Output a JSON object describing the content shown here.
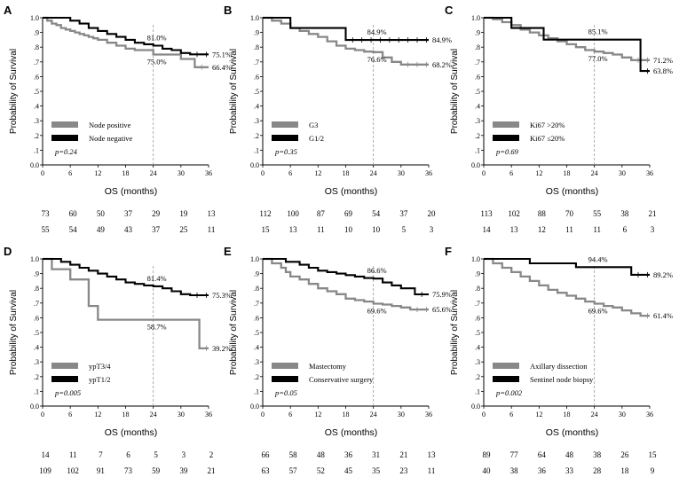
{
  "figure": {
    "y_axis_label": "Probability of Survival",
    "x_axis_label": "OS (months)",
    "y_tick_labels": [
      "0.0",
      ".1",
      ".2",
      ".3",
      ".4",
      ".5",
      ".6",
      ".7",
      ".8",
      ".9",
      "1.0"
    ],
    "x_tick_labels": [
      "0",
      "6",
      "12",
      "18",
      "24",
      "30",
      "36"
    ],
    "colors": {
      "gray": "#888888",
      "black": "#000000",
      "ref_line": "#999999"
    }
  },
  "chart_data": [
    {
      "type": "line",
      "panel": "A",
      "title": "",
      "xlabel": "OS (months)",
      "ylabel": "Probability of Survival",
      "xlim": [
        0,
        36
      ],
      "ylim": [
        0,
        1
      ],
      "reference_x": 24,
      "p_value": "p=0.24",
      "series": [
        {
          "name": "Node positive",
          "color": "gray",
          "x": [
            0,
            1,
            2,
            3,
            4,
            5,
            6,
            7,
            8,
            9,
            10,
            11,
            12,
            14,
            16,
            18,
            20,
            24,
            28,
            30,
            32,
            33,
            36
          ],
          "y": [
            1,
            0.98,
            0.96,
            0.95,
            0.93,
            0.92,
            0.91,
            0.9,
            0.89,
            0.88,
            0.87,
            0.86,
            0.85,
            0.83,
            0.81,
            0.79,
            0.78,
            0.75,
            0.75,
            0.72,
            0.72,
            0.664,
            0.664
          ],
          "label_end": "66.4%",
          "label_24": "75.0%"
        },
        {
          "name": "Node negative",
          "color": "black",
          "x": [
            0,
            5,
            6,
            8,
            10,
            12,
            14,
            16,
            18,
            20,
            22,
            24,
            26,
            28,
            30,
            32,
            36
          ],
          "y": [
            1,
            1,
            0.98,
            0.96,
            0.93,
            0.91,
            0.89,
            0.87,
            0.85,
            0.83,
            0.82,
            0.81,
            0.79,
            0.78,
            0.76,
            0.751,
            0.751
          ],
          "label_end": "75.1%",
          "label_24": "81.0%"
        }
      ],
      "at_risk": [
        {
          "series": "Node positive",
          "values": [
            "73",
            "60",
            "50",
            "37",
            "29",
            "19",
            "13"
          ]
        },
        {
          "series": "Node negative",
          "values": [
            "55",
            "54",
            "49",
            "43",
            "37",
            "25",
            "11"
          ]
        }
      ]
    },
    {
      "type": "line",
      "panel": "B",
      "title": "",
      "xlabel": "OS (months)",
      "ylabel": "Probability of Survival",
      "xlim": [
        0,
        36
      ],
      "ylim": [
        0,
        1
      ],
      "reference_x": 24,
      "p_value": "p=0.35",
      "series": [
        {
          "name": "G3",
          "color": "gray",
          "x": [
            0,
            2,
            4,
            6,
            8,
            10,
            12,
            14,
            16,
            18,
            20,
            22,
            24,
            26,
            28,
            30,
            36
          ],
          "y": [
            1,
            0.98,
            0.96,
            0.93,
            0.91,
            0.89,
            0.87,
            0.84,
            0.81,
            0.79,
            0.78,
            0.77,
            0.766,
            0.73,
            0.7,
            0.682,
            0.682
          ],
          "label_end": "68.2%",
          "label_24": "76.6%"
        },
        {
          "name": "G1/2",
          "color": "black",
          "x": [
            0,
            3,
            6,
            17,
            18,
            36
          ],
          "y": [
            1,
            1,
            0.93,
            0.93,
            0.849,
            0.849
          ],
          "label_end": "84.9%",
          "label_24": "84.9%"
        }
      ],
      "at_risk": [
        {
          "series": "G3",
          "values": [
            "112",
            "100",
            "87",
            "69",
            "54",
            "37",
            "20"
          ]
        },
        {
          "series": "G1/2",
          "values": [
            "15",
            "13",
            "11",
            "10",
            "10",
            "5",
            "3"
          ]
        }
      ]
    },
    {
      "type": "line",
      "panel": "C",
      "title": "",
      "xlabel": "OS (months)",
      "ylabel": "Probability of Survival",
      "xlim": [
        0,
        36
      ],
      "ylim": [
        0,
        1
      ],
      "reference_x": 24,
      "p_value": "p=0.69",
      "series": [
        {
          "name": "Ki67 >20%",
          "color": "gray",
          "x": [
            0,
            2,
            4,
            6,
            8,
            10,
            12,
            14,
            16,
            18,
            20,
            22,
            24,
            26,
            28,
            30,
            32,
            36
          ],
          "y": [
            1,
            0.99,
            0.97,
            0.95,
            0.92,
            0.9,
            0.88,
            0.86,
            0.84,
            0.82,
            0.8,
            0.78,
            0.77,
            0.76,
            0.75,
            0.73,
            0.712,
            0.712
          ],
          "label_end": "71.2%",
          "label_24": "77.0%"
        },
        {
          "name": "Ki67 ≤20%",
          "color": "black",
          "x": [
            0,
            5,
            6,
            12,
            13,
            33,
            34,
            36
          ],
          "y": [
            1,
            1,
            0.93,
            0.93,
            0.851,
            0.851,
            0.638,
            0.638
          ],
          "label_end": "63.8%",
          "label_24": "85.1%"
        }
      ],
      "at_risk": [
        {
          "series": "Ki67 >20%",
          "values": [
            "113",
            "102",
            "88",
            "70",
            "55",
            "38",
            "21"
          ]
        },
        {
          "series": "Ki67 ≤20%",
          "values": [
            "14",
            "13",
            "12",
            "11",
            "11",
            "6",
            "3"
          ]
        }
      ]
    },
    {
      "type": "line",
      "panel": "D",
      "title": "",
      "xlabel": "OS (months)",
      "ylabel": "Probability of Survival",
      "xlim": [
        0,
        36
      ],
      "ylim": [
        0,
        1
      ],
      "reference_x": 24,
      "p_value": "p=0.005",
      "series": [
        {
          "name": "ypT3/4",
          "color": "gray",
          "x": [
            0,
            2,
            5,
            6,
            9,
            10,
            12,
            33,
            34,
            36
          ],
          "y": [
            1,
            0.93,
            0.93,
            0.86,
            0.86,
            0.68,
            0.587,
            0.587,
            0.392,
            0.392
          ],
          "label_end": "39.2%",
          "label_24": "58.7%"
        },
        {
          "name": "ypT1/2",
          "color": "black",
          "x": [
            0,
            3,
            4,
            6,
            8,
            10,
            12,
            14,
            16,
            18,
            20,
            22,
            24,
            26,
            28,
            30,
            32,
            36
          ],
          "y": [
            1,
            1,
            0.98,
            0.96,
            0.94,
            0.92,
            0.9,
            0.88,
            0.86,
            0.84,
            0.83,
            0.82,
            0.814,
            0.8,
            0.78,
            0.76,
            0.753,
            0.753
          ],
          "label_end": "75.3%",
          "label_24": "81.4%"
        }
      ],
      "at_risk": [
        {
          "series": "ypT3/4",
          "values": [
            "14",
            "11",
            "7",
            "6",
            "5",
            "3",
            "2"
          ]
        },
        {
          "series": "ypT1/2",
          "values": [
            "109",
            "102",
            "91",
            "73",
            "59",
            "39",
            "21"
          ]
        }
      ]
    },
    {
      "type": "line",
      "panel": "E",
      "title": "",
      "xlabel": "OS (months)",
      "ylabel": "Probability of Survival",
      "xlim": [
        0,
        36
      ],
      "ylim": [
        0,
        1
      ],
      "reference_x": 24,
      "p_value": "p=0.05",
      "series": [
        {
          "name": "Mastectomy",
          "color": "gray",
          "x": [
            0,
            2,
            4,
            5,
            6,
            8,
            10,
            12,
            14,
            16,
            18,
            20,
            22,
            24,
            26,
            28,
            30,
            32,
            36
          ],
          "y": [
            1,
            0.97,
            0.94,
            0.91,
            0.88,
            0.86,
            0.83,
            0.8,
            0.78,
            0.76,
            0.73,
            0.72,
            0.71,
            0.696,
            0.69,
            0.68,
            0.67,
            0.656,
            0.656
          ],
          "label_end": "65.6%",
          "label_24": "69.6%"
        },
        {
          "name": "Conservative surgery",
          "color": "black",
          "x": [
            0,
            4,
            5,
            8,
            10,
            12,
            14,
            16,
            18,
            20,
            22,
            24,
            26,
            28,
            30,
            33,
            36
          ],
          "y": [
            1,
            1,
            0.98,
            0.96,
            0.94,
            0.92,
            0.91,
            0.9,
            0.89,
            0.88,
            0.87,
            0.866,
            0.84,
            0.82,
            0.8,
            0.759,
            0.759
          ],
          "label_end": "75.9%",
          "label_24": "86.6%"
        }
      ],
      "at_risk": [
        {
          "series": "Mastectomy",
          "values": [
            "66",
            "58",
            "48",
            "36",
            "31",
            "21",
            "13"
          ]
        },
        {
          "series": "Conservative surgery",
          "values": [
            "63",
            "57",
            "52",
            "45",
            "35",
            "23",
            "11"
          ]
        }
      ]
    },
    {
      "type": "line",
      "panel": "F",
      "title": "",
      "xlabel": "OS (months)",
      "ylabel": "Probability of Survival",
      "xlim": [
        0,
        36
      ],
      "ylim": [
        0,
        1
      ],
      "reference_x": 24,
      "p_value": "p=0.002",
      "series": [
        {
          "name": "Axillary dissection",
          "color": "gray",
          "x": [
            0,
            2,
            4,
            6,
            8,
            10,
            12,
            14,
            16,
            18,
            20,
            22,
            24,
            26,
            28,
            30,
            32,
            34,
            36
          ],
          "y": [
            1,
            0.97,
            0.94,
            0.91,
            0.88,
            0.85,
            0.82,
            0.79,
            0.77,
            0.75,
            0.73,
            0.71,
            0.696,
            0.68,
            0.67,
            0.65,
            0.63,
            0.614,
            0.614
          ],
          "label_end": "61.4%",
          "label_24": "69.6%"
        },
        {
          "name": "Sentinel node biopsy",
          "color": "black",
          "x": [
            0,
            9,
            10,
            19,
            20,
            31,
            32,
            36
          ],
          "y": [
            1,
            1,
            0.97,
            0.97,
            0.944,
            0.944,
            0.892,
            0.892
          ],
          "label_end": "89.2%",
          "label_24": "94.4%"
        }
      ],
      "at_risk": [
        {
          "series": "Axillary dissection",
          "values": [
            "89",
            "77",
            "64",
            "48",
            "38",
            "26",
            "15"
          ]
        },
        {
          "series": "Sentinel node biopsy",
          "values": [
            "40",
            "38",
            "36",
            "33",
            "28",
            "18",
            "9"
          ]
        }
      ]
    }
  ]
}
